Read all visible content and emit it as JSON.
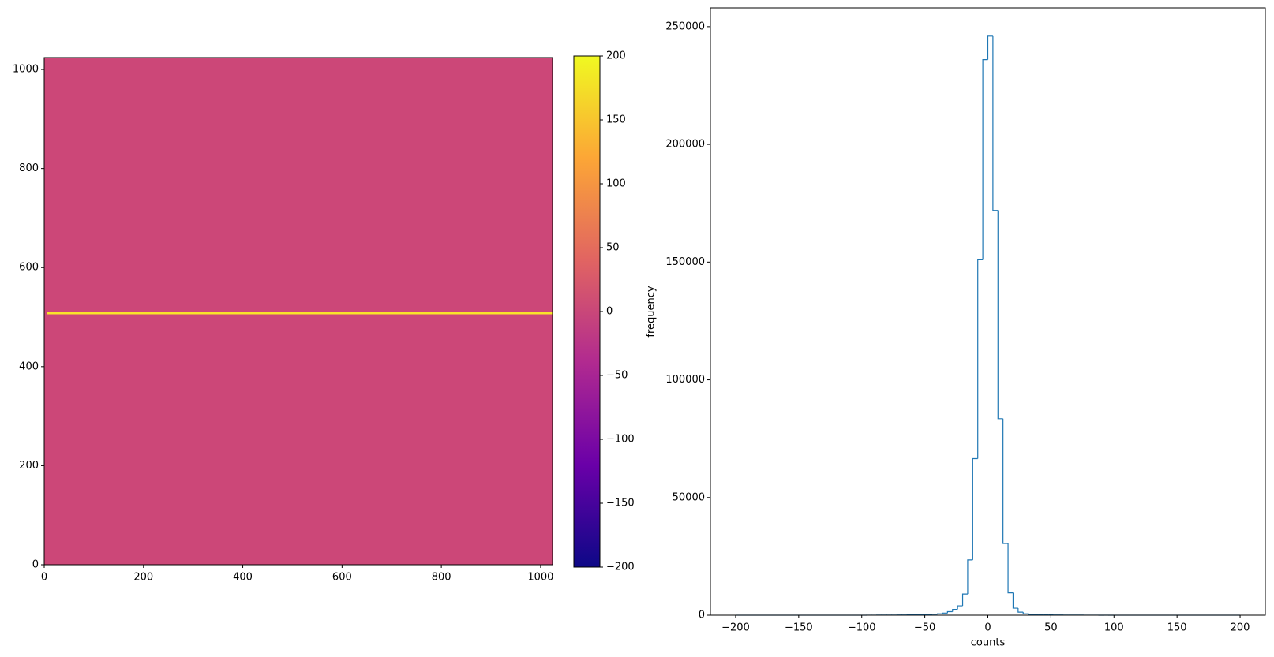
{
  "chart_data": [
    {
      "type": "image",
      "xlim": [
        0,
        1024
      ],
      "ylim": [
        0,
        1024
      ],
      "xticks": [
        0,
        200,
        400,
        600,
        800,
        1000
      ],
      "yticks": [
        0,
        200,
        400,
        600,
        800,
        1000
      ],
      "color": "#cc4778",
      "bright_row": 508,
      "bright_row_color": "#f9e32a",
      "colormap_colors": [
        "#0d0887",
        "#6a00a8",
        "#b12a90",
        "#e16462",
        "#fca636",
        "#f0f921"
      ],
      "clim": [
        -200,
        200
      ],
      "cticks": [
        {
          "value": -200,
          "label": "−200"
        },
        {
          "value": -150,
          "label": "−150"
        },
        {
          "value": -100,
          "label": "−100"
        },
        {
          "value": -50,
          "label": "−50"
        },
        0,
        50,
        100,
        150,
        200
      ]
    },
    {
      "type": "histogram",
      "xlabel": "counts",
      "ylabel": "frequency",
      "color": "#1f77b4",
      "bins": [
        -200,
        -196,
        -192,
        -188,
        -184,
        -180,
        -176,
        -172,
        -168,
        -164,
        -160,
        -156,
        -152,
        -148,
        -144,
        -140,
        -136,
        -132,
        -128,
        -124,
        -120,
        -116,
        -112,
        -108,
        -104,
        -100,
        -96,
        -92,
        -88,
        -84,
        -80,
        -76,
        -72,
        -68,
        -64,
        -60,
        -56,
        -52,
        -48,
        -44,
        -40,
        -36,
        -32,
        -28,
        -24,
        -20,
        -16,
        -12,
        -8,
        -4,
        0,
        4,
        8,
        12,
        16,
        20,
        24,
        28,
        32,
        36,
        40,
        44,
        48,
        52,
        56,
        60,
        64,
        68,
        72,
        76,
        80,
        84,
        88,
        92,
        96,
        100,
        104,
        108,
        112,
        116,
        120,
        124,
        128,
        132,
        136,
        140,
        144,
        148,
        152,
        156,
        160,
        164,
        168,
        172,
        176,
        180,
        184,
        188,
        192,
        196,
        200
      ],
      "values": [
        0,
        0,
        0,
        0,
        0,
        0,
        0,
        0,
        0,
        0,
        0,
        0,
        0,
        0,
        0,
        0,
        0,
        0,
        0,
        0,
        0,
        0,
        0,
        0,
        0,
        0,
        20,
        25,
        30,
        40,
        50,
        60,
        80,
        100,
        120,
        150,
        200,
        250,
        300,
        400,
        600,
        900,
        1500,
        2500,
        4000,
        9000,
        23500,
        66500,
        151000,
        236000,
        246000,
        172000,
        83500,
        30500,
        9500,
        3000,
        1300,
        600,
        300,
        250,
        200,
        150,
        120,
        100,
        80,
        60,
        50,
        40,
        30,
        25,
        20,
        15,
        10,
        10,
        0,
        0,
        0,
        0,
        0,
        0,
        0,
        0,
        0,
        0,
        0,
        0,
        0,
        0,
        0,
        0,
        0,
        0,
        0,
        0,
        0,
        0,
        0,
        0,
        0,
        0
      ],
      "xlim": [
        -220,
        220
      ],
      "ylim": [
        0,
        258000
      ],
      "xticks": [
        {
          "value": -200,
          "label": "−200"
        },
        {
          "value": -150,
          "label": "−150"
        },
        {
          "value": -100,
          "label": "−100"
        },
        {
          "value": -50,
          "label": "−50"
        },
        0,
        50,
        100,
        150,
        200
      ],
      "yticks": [
        0,
        50000,
        100000,
        150000,
        200000,
        250000
      ]
    }
  ]
}
